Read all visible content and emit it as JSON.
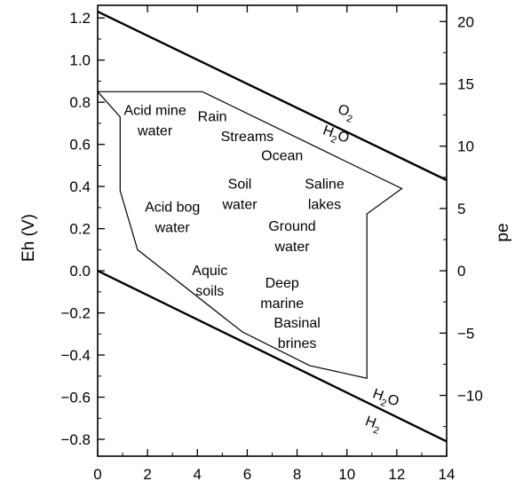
{
  "chart_data": {
    "type": "line",
    "xlabel": "",
    "ylabel_left": "Eh (V)",
    "ylabel_right": "pe",
    "xlim": [
      0,
      14
    ],
    "ylim_left": [
      -0.88,
      1.26
    ],
    "ylim_right": [
      -14.875,
      21.3
    ],
    "xticks": [
      0,
      2,
      4,
      6,
      8,
      10,
      12,
      14
    ],
    "yticks_left": [
      -0.8,
      -0.6,
      -0.4,
      -0.2,
      0.0,
      0.2,
      0.4,
      0.6,
      0.8,
      1.0,
      1.2
    ],
    "yticks_left_labels": [
      "−0.8",
      "−0.6",
      "−0.4",
      "−0.2",
      "0.0",
      "0.2",
      "0.4",
      "0.6",
      "0.8",
      "1.0",
      "1.2"
    ],
    "yticks_right": [
      -10,
      -5,
      0,
      5,
      10,
      15,
      20
    ],
    "yticks_right_labels": [
      "−10",
      "−5",
      "0",
      "5",
      "10",
      "15",
      "20"
    ],
    "grid": false,
    "series": [
      {
        "role": "upper-stability-line",
        "x": [
          0,
          14
        ],
        "y": [
          1.23,
          0.43
        ],
        "labels": [
          {
            "main": "O",
            "sub": "2",
            "x": 9.6,
            "y": 0.75
          },
          {
            "main": "H",
            "sub": "2",
            "tail": "O",
            "x": 9.0,
            "y": 0.65
          }
        ]
      },
      {
        "role": "lower-stability-line",
        "x": [
          0,
          14
        ],
        "y": [
          0.0,
          -0.81
        ],
        "labels": [
          {
            "main": "H",
            "sub": "2",
            "tail": "O",
            "x": 11.0,
            "y": -0.6
          },
          {
            "main": "H",
            "sub": "2",
            "x": 10.7,
            "y": -0.73
          }
        ]
      },
      {
        "role": "natural-environments-boundary",
        "x": [
          0,
          4.2,
          12.2,
          10.8,
          10.8,
          8.5,
          5.8,
          1.6,
          0.9,
          0.9,
          0.0
        ],
        "y": [
          0.85,
          0.85,
          0.39,
          0.27,
          -0.51,
          -0.45,
          -0.29,
          0.1,
          0.38,
          0.73,
          0.85
        ]
      }
    ],
    "annotations": [
      {
        "lines": [
          "Acid mine",
          "water"
        ],
        "x": 2.3,
        "y": 0.74
      },
      {
        "lines": [
          "Rain"
        ],
        "x": 4.6,
        "y": 0.71
      },
      {
        "lines": [
          "Streams"
        ],
        "x": 6.0,
        "y": 0.615
      },
      {
        "lines": [
          "Ocean"
        ],
        "x": 7.4,
        "y": 0.525
      },
      {
        "lines": [
          "Soil",
          "water"
        ],
        "x": 5.7,
        "y": 0.39
      },
      {
        "lines": [
          "Saline",
          "lakes"
        ],
        "x": 9.1,
        "y": 0.39
      },
      {
        "lines": [
          "Acid bog",
          "water"
        ],
        "x": 3.0,
        "y": 0.28
      },
      {
        "lines": [
          "Ground",
          "water"
        ],
        "x": 7.8,
        "y": 0.19
      },
      {
        "lines": [
          "Aquic",
          "soils"
        ],
        "x": 4.5,
        "y": -0.02
      },
      {
        "lines": [
          "Deep",
          "marine"
        ],
        "x": 7.4,
        "y": -0.08
      },
      {
        "lines": [
          "Basinal",
          "brines"
        ],
        "x": 8.0,
        "y": -0.27
      }
    ]
  }
}
